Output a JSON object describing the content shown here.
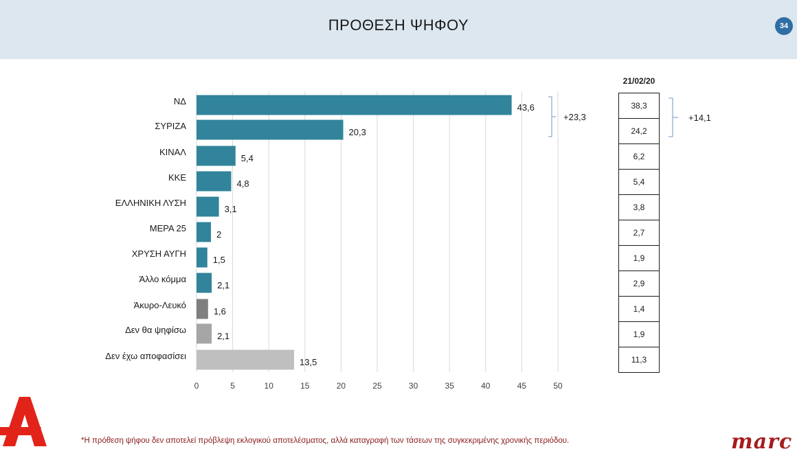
{
  "header": {
    "title": "ΠΡΟΘΕΣΗ ΨΗΦΟΥ",
    "page_number": "34"
  },
  "chart_data": {
    "type": "bar",
    "orientation": "horizontal",
    "categories": [
      "ΝΔ",
      "ΣΥΡΙΖΑ",
      "ΚΙΝΑΛ",
      "ΚΚΕ",
      "ΕΛΛΗΝΙΚΗ ΛΥΣΗ",
      "ΜΕΡΑ 25",
      "ΧΡΥΣΗ ΑΥΓΗ",
      "Άλλο κόμμα",
      "Άκυρο-Λευκό",
      "Δεν θα ψηφίσω",
      "Δεν έχω αποφασίσει"
    ],
    "values": [
      43.6,
      20.3,
      5.4,
      4.8,
      3.1,
      2,
      1.5,
      2.1,
      1.6,
      2.1,
      13.5
    ],
    "value_labels": [
      "43,6",
      "20,3",
      "5,4",
      "4,8",
      "3,1",
      "2",
      "1,5",
      "2,1",
      "1,6",
      "2,1",
      "13,5"
    ],
    "bar_colors": [
      "#31849b",
      "#31849b",
      "#31849b",
      "#31849b",
      "#31849b",
      "#31849b",
      "#31849b",
      "#31849b",
      "#7f7f7f",
      "#a6a6a6",
      "#bfbfbf"
    ],
    "xlim": [
      0,
      50
    ],
    "xticks": [
      0,
      5,
      10,
      15,
      20,
      25,
      30,
      35,
      40,
      45,
      50
    ],
    "grid": true,
    "lead_annotation": "+23,3"
  },
  "comparison": {
    "date": "21/02/20",
    "values": [
      "38,3",
      "24,2",
      "6,2",
      "5,4",
      "3,8",
      "2,7",
      "1,9",
      "2,9",
      "1,4",
      "1,9",
      "11,3"
    ],
    "lead_annotation": "+14,1"
  },
  "footnote": "*Η πρόθεση ψήφου δεν αποτελεί πρόβλεψη εκλογικού αποτελέσματος, αλλά καταγραφή των τάσεων της συγκεκριμένης χρονικής περιόδου.",
  "logos": {
    "left": "Α",
    "right": "marc"
  },
  "colors": {
    "header_bg": "#dde7ef",
    "party_bar": "#31849b",
    "footnote": "#8a1a1a",
    "marc": "#a51d1d",
    "badge": "#2f6ea5"
  }
}
